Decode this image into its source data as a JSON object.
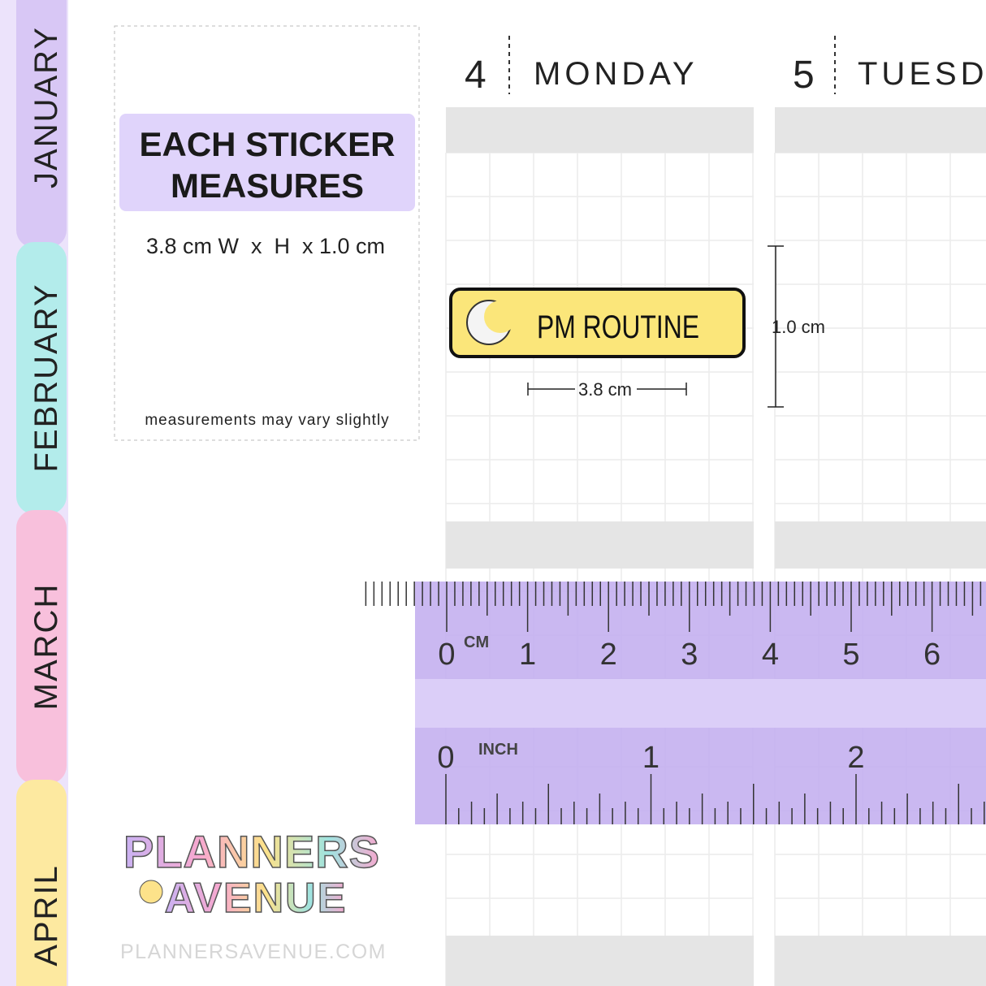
{
  "tabs": [
    "JANUARY",
    "FEBRUARY",
    "MARCH",
    "APRIL"
  ],
  "info": {
    "title_line1": "EACH STICKER",
    "title_line2": "MEASURES",
    "size": "3.8 cm W  x  H  x 1.0 cm",
    "note": "measurements may vary slightly"
  },
  "days": [
    {
      "number": "4",
      "name": "MONDAY"
    },
    {
      "number": "5",
      "name": "TUESD"
    }
  ],
  "sticker": {
    "label": "PM ROUTINE",
    "width_label": "3.8 cm",
    "height_label": "1.0 cm"
  },
  "ruler": {
    "cm_unit": "CM",
    "cm_labels": [
      "0",
      "1",
      "2",
      "3",
      "4",
      "5",
      "6"
    ],
    "inch_unit": "INCH",
    "inch_labels": [
      "0",
      "1",
      "2"
    ]
  },
  "logo": {
    "line1": "PLANNERS",
    "line2": "AVENUE"
  },
  "footer": "PLANNERSAVENUE.COM"
}
